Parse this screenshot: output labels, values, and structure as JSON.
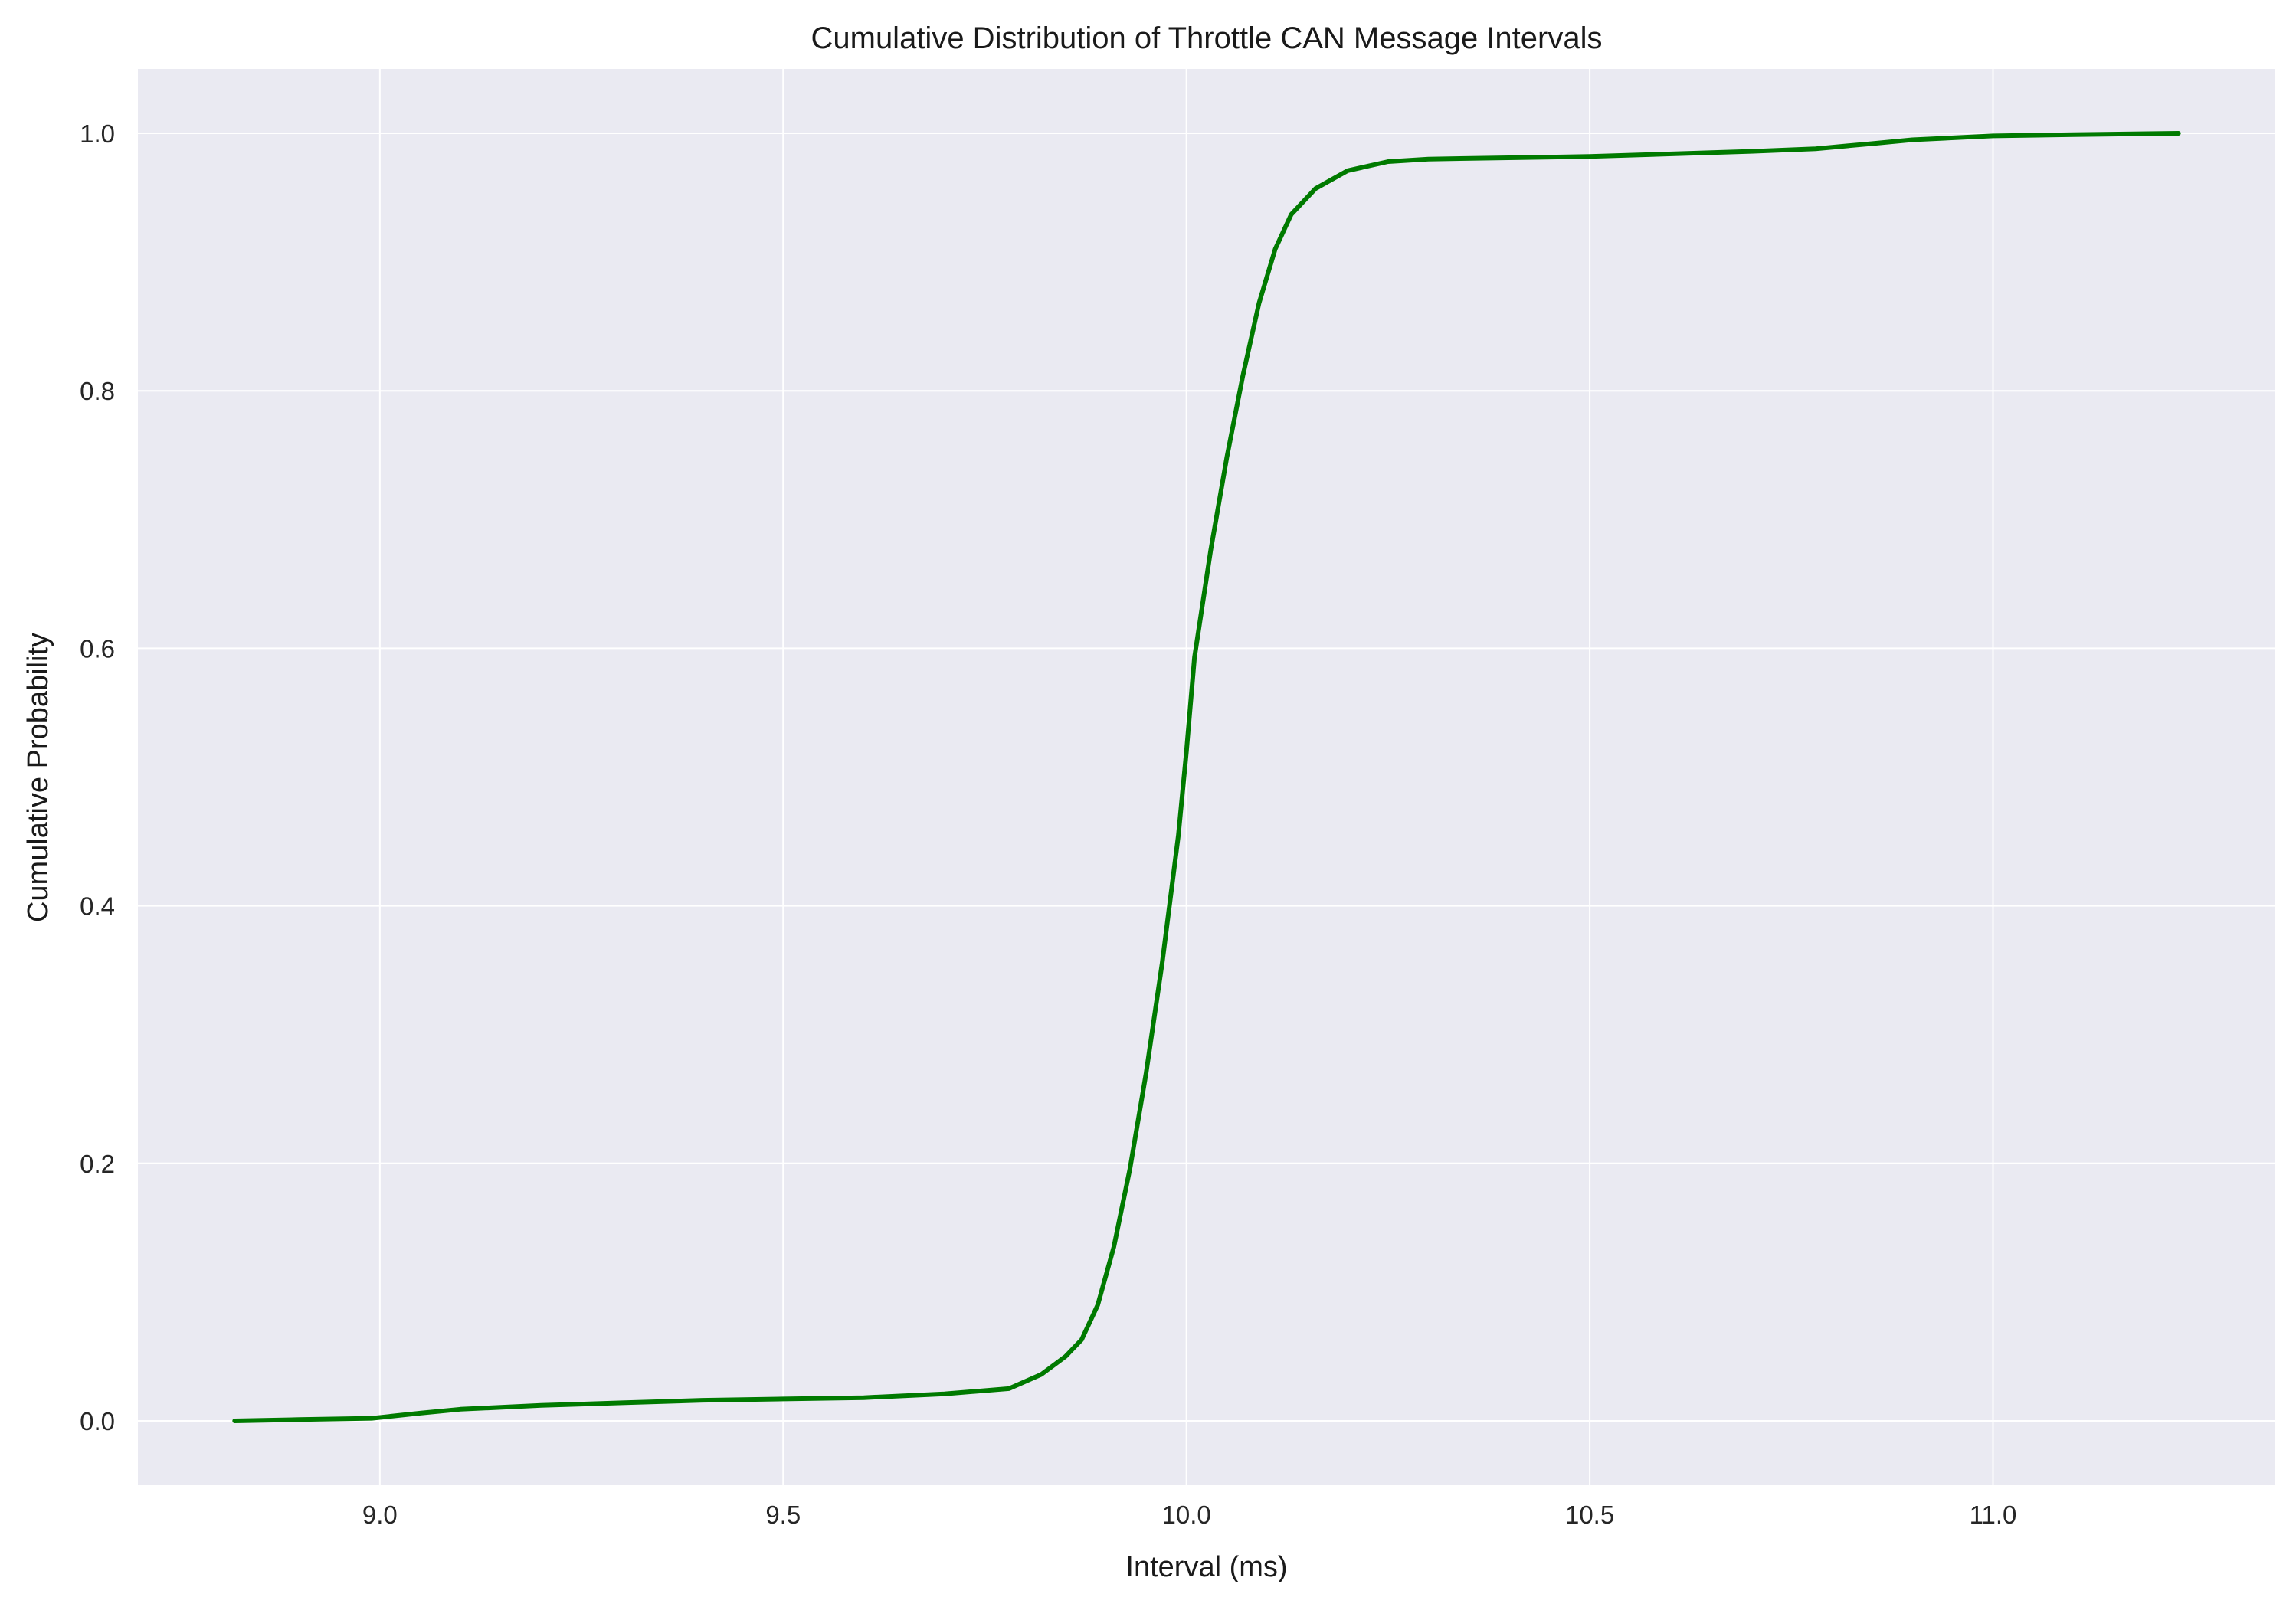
{
  "chart_data": {
    "type": "line",
    "title": "Cumulative Distribution of Throttle CAN Message Intervals",
    "xlabel": "Interval (ms)",
    "ylabel": "Cumulative Probability",
    "xlim": [
      8.7,
      11.35
    ],
    "ylim": [
      -0.05,
      1.05
    ],
    "xticks": [
      "9.0",
      "9.5",
      "10.0",
      "10.5",
      "11.0"
    ],
    "yticks": [
      "0.0",
      "0.2",
      "0.4",
      "0.6",
      "0.8",
      "1.0"
    ],
    "grid": true,
    "legend": "none",
    "colors": {
      "background": "#eaeaf2",
      "grid": "#ffffff",
      "line": "#007a00"
    },
    "series": [
      {
        "x": [
          8.82,
          8.9,
          8.99,
          9.05,
          9.1,
          9.2,
          9.3,
          9.4,
          9.5,
          9.6,
          9.7,
          9.78,
          9.82,
          9.85,
          9.87,
          9.89,
          9.91,
          9.93,
          9.95,
          9.97,
          9.99,
          10.0,
          10.01,
          10.03,
          10.05,
          10.07,
          10.09,
          10.11,
          10.13,
          10.16,
          10.2,
          10.25,
          10.3,
          10.5,
          10.7,
          10.78,
          10.85,
          10.9,
          11.0,
          11.1,
          11.23
        ],
        "y": [
          0.0,
          0.001,
          0.002,
          0.006,
          0.009,
          0.012,
          0.014,
          0.016,
          0.017,
          0.018,
          0.021,
          0.025,
          0.036,
          0.05,
          0.063,
          0.09,
          0.135,
          0.196,
          0.27,
          0.356,
          0.455,
          0.52,
          0.593,
          0.676,
          0.748,
          0.812,
          0.868,
          0.91,
          0.937,
          0.957,
          0.971,
          0.978,
          0.98,
          0.982,
          0.986,
          0.988,
          0.992,
          0.995,
          0.998,
          0.999,
          1.0
        ]
      }
    ]
  }
}
